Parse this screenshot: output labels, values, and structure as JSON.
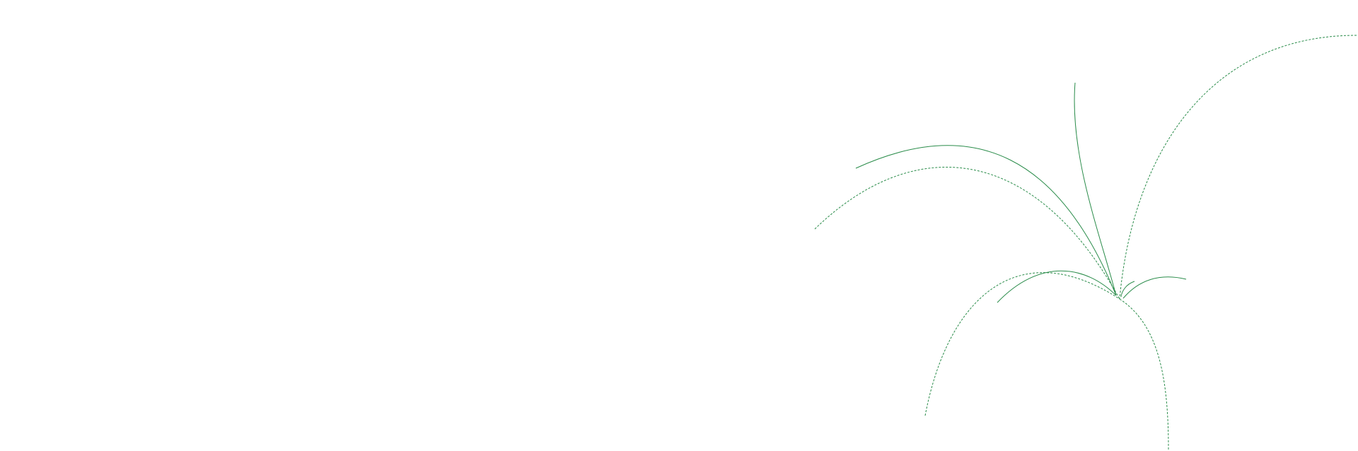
{
  "colors": {
    "background": "#ffffff",
    "stroke": "#2a8c4a"
  }
}
